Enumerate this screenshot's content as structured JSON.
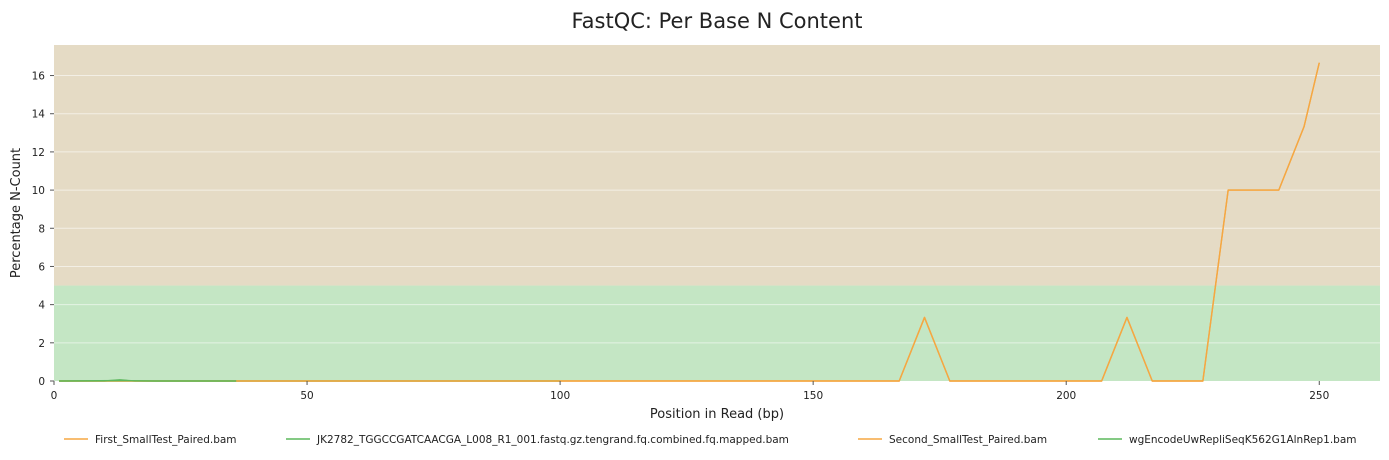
{
  "chart_data": {
    "type": "line",
    "title": "FastQC: Per Base N Content",
    "xlabel": "Position in Read (bp)",
    "ylabel": "Percentage N-Count",
    "xlim": [
      0,
      262
    ],
    "ylim": [
      0,
      17.6
    ],
    "xticks": [
      0,
      50,
      100,
      150,
      200,
      250
    ],
    "yticks": [
      0,
      2,
      4,
      6,
      8,
      10,
      12,
      14,
      16
    ],
    "grid": true,
    "legend_position": "bottom",
    "bands": [
      {
        "from": 0,
        "to": 5,
        "color": "#c4e6c4"
      },
      {
        "from": 5,
        "to": 17.6,
        "color": "#e5dbc5"
      }
    ],
    "series": [
      {
        "name": "First_SmallTest_Paired.bam",
        "color": "#f5a742",
        "x": [
          1,
          50,
          100,
          150,
          167,
          172,
          177,
          207,
          212,
          217,
          227,
          232,
          237,
          242,
          247,
          250
        ],
        "y": [
          0,
          0,
          0,
          0,
          0,
          3.33,
          0,
          0,
          3.33,
          0,
          0,
          10,
          10,
          10,
          13.33,
          16.67
        ]
      },
      {
        "name": "JK2782_TGGCCGATCAACGA_L008_R1_001.fastq.gz.tengrand.fq.combined.fq.mapped.bam",
        "color": "#5cb85c",
        "x": [
          1,
          10,
          13,
          16,
          20,
          50,
          100
        ],
        "y": [
          0,
          0,
          0.06,
          0,
          0,
          0,
          0
        ]
      },
      {
        "name": "Second_SmallTest_Paired.bam",
        "color": "#f5a742",
        "x": [
          1,
          50,
          100,
          150,
          167,
          172,
          177,
          207,
          212,
          217,
          227,
          232,
          237,
          242,
          247,
          250
        ],
        "y": [
          0,
          0,
          0,
          0,
          0,
          3.33,
          0,
          0,
          3.33,
          0,
          0,
          10,
          10,
          10,
          13.33,
          16.67
        ]
      },
      {
        "name": "wgEncodeUwRepliSeqK562G1AlnRep1.bam",
        "color": "#5cb85c",
        "x": [
          1,
          13,
          20,
          36
        ],
        "y": [
          0,
          0.02,
          0,
          0
        ]
      }
    ]
  }
}
